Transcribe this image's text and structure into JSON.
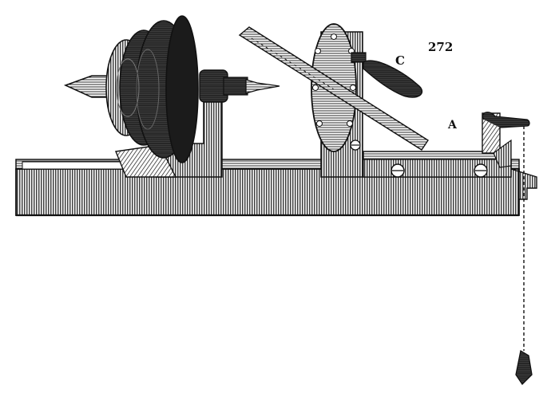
{
  "figure": {
    "number": "272",
    "labels": {
      "c": "C",
      "a": "A"
    }
  },
  "colors": {
    "ink": "#111111",
    "paper": "#ffffff",
    "mid": "#3a3a3a"
  }
}
